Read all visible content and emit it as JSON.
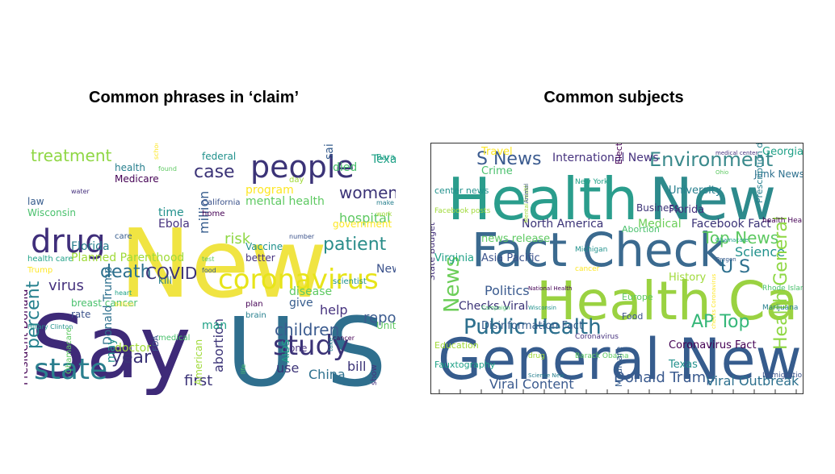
{
  "panels": [
    {
      "title": "Common phrases in ‘claim’",
      "words": [
        "New",
        "Say",
        "U S",
        "people",
        "drug",
        "coronavirus",
        "state",
        "study",
        "death",
        "COVID",
        "treatment",
        "patient",
        "children",
        "women",
        "health",
        "percent",
        "year",
        "virus",
        "report",
        "first",
        "China",
        "use",
        "help",
        "risk",
        "hospital",
        "case",
        "million",
        "Donald Trump",
        "abortion",
        "bill",
        "Texas",
        "time",
        "test",
        "plan",
        "one",
        "said",
        "make",
        "health care",
        "breast cancer",
        "doctor",
        "school",
        "California",
        "Vaccine",
        "disease",
        "cancer",
        "show",
        "law",
        "Florida",
        "heart",
        "medical",
        "American",
        "program",
        "number",
        "scientist",
        "United States",
        "President Donald",
        "water",
        "care",
        "kill",
        "man",
        "life",
        "day",
        "government",
        "New York",
        "Hillary Clinton",
        "Obamacare",
        "Medicare",
        "Ebola",
        "food",
        "brain",
        "AIDS",
        "died",
        "work",
        "Trump",
        "rate",
        "may",
        "found",
        "home",
        "better",
        "give",
        "take",
        "Barack Obama",
        "Wisconsin",
        "Planned Parenthood",
        "billion",
        "FDA",
        "federal",
        "mental health"
      ]
    },
    {
      "title": "Common subjects",
      "words": [
        "Health",
        "New",
        "Fact Check",
        "Health Care",
        "General News",
        "Public Health",
        "Top News",
        "News",
        "Environment",
        "AP Top",
        "U S",
        "Politics",
        "Science",
        "Donald Trump",
        "Viral Outbreak",
        "Viral Content",
        "S News",
        "International News",
        "Junk News",
        "Facebook Fact",
        "Business",
        "North America",
        "Medical",
        "Georgia",
        "Checks Viral",
        "Facebook posts",
        "Health General",
        "Asia Pacific",
        "Wisconsin",
        "Barack Obama",
        "Election",
        "Florida",
        "Oregon",
        "Marijuana",
        "Fauxtography",
        "Crime",
        "Mental health",
        "cancer",
        "Food",
        "Texas",
        "Ohio",
        "health Health",
        "State Budget",
        "Disinformation Fact",
        "Science New",
        "New York",
        "Abortion",
        "History",
        "checks Coronavirus",
        "Immigration",
        "center news",
        "news release",
        "National Health",
        "Coronavirus",
        "Medicare",
        "University",
        "Obamacare",
        "Rhode Island",
        "Education",
        "Travel",
        "Animal",
        "Michigan",
        "Europe",
        "Coronavirus Fact",
        "medical center",
        "Public Health",
        "Prescription drug",
        "Virginia",
        "Campaign",
        "drug"
      ]
    }
  ]
}
